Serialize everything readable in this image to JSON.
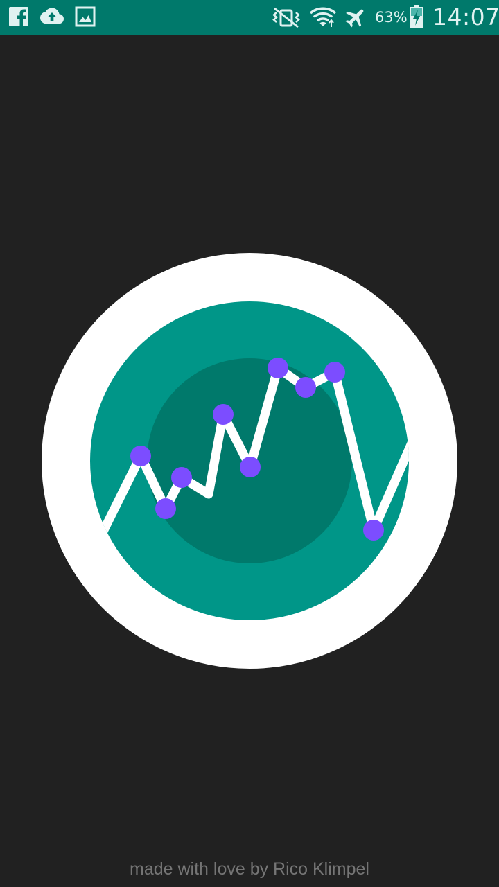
{
  "status_bar": {
    "notification_icons": [
      "facebook-icon",
      "cloud-upload-icon",
      "image-icon"
    ],
    "system_icons": [
      "vibrate-icon",
      "wifi-icon",
      "airplane-mode-icon",
      "battery-charging-icon"
    ],
    "battery_percent": "63%",
    "clock": "14:07",
    "background_color": "#00796b"
  },
  "splash": {
    "logo_icon": "line-chart-logo-icon",
    "colors": {
      "background": "#212121",
      "ring": "#ffffff",
      "outer_disc": "#009688",
      "inner_disc": "#00796b",
      "line": "#ffffff",
      "points": "#7c4dff"
    }
  },
  "footer": {
    "credit": "made with love by Rico Klimpel"
  }
}
